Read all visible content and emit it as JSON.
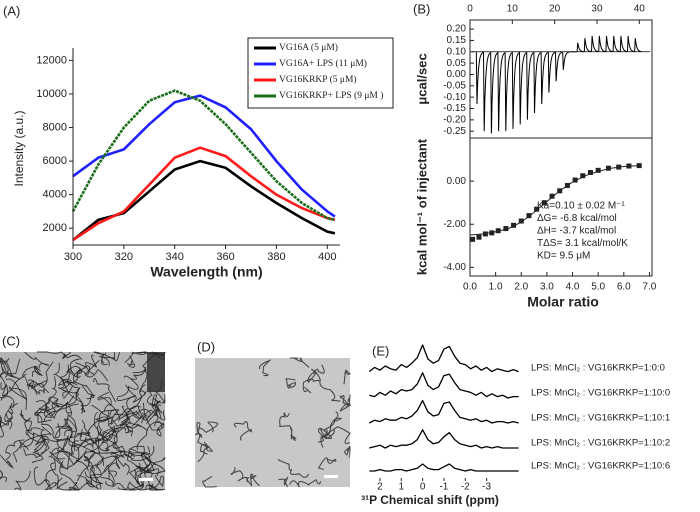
{
  "chart_data": [
    {
      "type": "line",
      "panel_label": "(A)",
      "xlabel": "Wavelength (nm)",
      "ylabel": "Intensity (a.u.)",
      "x": [
        300,
        310,
        320,
        330,
        340,
        350,
        360,
        370,
        380,
        390,
        400,
        403
      ],
      "xlim": [
        300,
        405
      ],
      "xticks": [
        300,
        320,
        340,
        360,
        380,
        400
      ],
      "ylim": [
        1000,
        12500
      ],
      "yticks": [
        2000,
        4000,
        6000,
        8000,
        10000,
        12000
      ],
      "legend": "upper right",
      "series": [
        {
          "name": "VG16A (5 μM)",
          "color": "#000000",
          "values": [
            1300,
            2500,
            2900,
            4200,
            5500,
            6000,
            5600,
            4500,
            3500,
            2600,
            1800,
            1700
          ]
        },
        {
          "name": "VG16A+ LPS (11 μM)",
          "color": "#1f1fff",
          "values": [
            5100,
            6200,
            6700,
            8200,
            9500,
            9900,
            9200,
            7900,
            6000,
            4300,
            3000,
            2700
          ]
        },
        {
          "name": "VG16KRKP (5 μM)",
          "color": "#ff1a1a",
          "values": [
            1300,
            2300,
            3000,
            4600,
            6200,
            6800,
            6300,
            5100,
            4000,
            3200,
            2600,
            2500
          ]
        },
        {
          "name": "VG16KRKP+ LPS (9 μM )",
          "color": "#1a6e1a",
          "values": [
            3000,
            5800,
            8000,
            9600,
            10200,
            9600,
            8200,
            6500,
            4800,
            3500,
            2600,
            2500
          ]
        }
      ]
    },
    {
      "type": "itc-raw",
      "panel_label": "(B)",
      "ylabel": "μcal/sec",
      "color": "#000000",
      "baseline": 0.1,
      "x": [
        1.5,
        3.2,
        4.9,
        6.6,
        8.3,
        10.0,
        11.7,
        13.4,
        15.1,
        16.8,
        18.5,
        20.2,
        21.9,
        23.6,
        25.3,
        27.0,
        28.7,
        30.4,
        32.1,
        33.8,
        35.5,
        37.2,
        38.9
      ],
      "values": [
        -0.13,
        -0.25,
        -0.26,
        -0.25,
        -0.25,
        -0.24,
        -0.22,
        -0.2,
        -0.17,
        -0.13,
        -0.08,
        -0.03,
        0.02,
        0.1,
        0.14,
        0.16,
        0.17,
        0.17,
        0.17,
        0.17,
        0.17,
        0.17,
        0.16
      ],
      "xlim": [
        0,
        43
      ],
      "xticks": [
        0,
        10,
        20,
        30,
        40
      ],
      "ylim": [
        -0.28,
        0.24
      ],
      "yticks": [
        {
          "value": 0.2,
          "label": "0.20"
        },
        {
          "value": 0.15,
          "label": "0.15"
        },
        {
          "value": 0.1,
          "label": "0.10"
        },
        {
          "value": 0.05,
          "label": "0.05"
        },
        {
          "value": 0,
          "label": "0.00"
        },
        {
          "value": -0.05,
          "label": "-0.05"
        },
        {
          "value": -0.1,
          "label": "-0.10"
        },
        {
          "value": -0.15,
          "label": "-0.15"
        },
        {
          "value": -0.2,
          "label": "-0.20"
        },
        {
          "value": -0.25,
          "label": "-0.25"
        }
      ]
    },
    {
      "type": "scatter",
      "xlabel": "Molar ratio",
      "ylabel": "kcal mol⁻¹ of injectant",
      "color": "#222222",
      "xlim": [
        0,
        7.1
      ],
      "xticks": [
        {
          "value": 0,
          "label": "0.0"
        },
        {
          "value": 1,
          "label": "1.0"
        },
        {
          "value": 2,
          "label": "2.0"
        },
        {
          "value": 3,
          "label": "3.0"
        },
        {
          "value": 4,
          "label": "4.0"
        },
        {
          "value": 5,
          "label": "5.0"
        },
        {
          "value": 6,
          "label": "6.0"
        },
        {
          "value": 7,
          "label": "7.0"
        }
      ],
      "ylim": [
        -4.4,
        2.0
      ],
      "yticks": [
        {
          "value": 0,
          "label": "0.00"
        },
        {
          "value": -2,
          "label": "-2.00"
        },
        {
          "value": -4,
          "label": "-4.00"
        }
      ],
      "annotations": [
        "Ka=0.10 ± 0.02 M⁻¹",
        "ΔG= -6.8 kcal/mol",
        "ΔH= -3.7 kcal/mol",
        "TΔS= 3.1 kcal/mol/K",
        "KD= 9.5 μM"
      ],
      "series": [
        {
          "marker": "square",
          "x": [
            0.1,
            0.35,
            0.6,
            0.85,
            1.1,
            1.4,
            1.7,
            2.0,
            2.3,
            2.6,
            2.9,
            3.2,
            3.5,
            3.8,
            4.1,
            4.4,
            4.7,
            5.0,
            5.4,
            5.8,
            6.2,
            6.6
          ],
          "values": [
            -2.7,
            -2.6,
            -2.45,
            -2.4,
            -2.3,
            -2.2,
            -2.05,
            -1.85,
            -1.6,
            -1.3,
            -1.0,
            -0.7,
            -0.45,
            -0.2,
            0.05,
            0.25,
            0.4,
            0.5,
            0.6,
            0.65,
            0.7,
            0.72
          ]
        },
        {
          "marker": "line",
          "x": [
            0,
            0.5,
            1,
            1.5,
            2,
            2.5,
            3,
            3.5,
            4,
            4.5,
            5,
            5.5,
            6,
            6.6
          ],
          "values": [
            -2.5,
            -2.45,
            -2.35,
            -2.2,
            -1.9,
            -1.45,
            -0.95,
            -0.45,
            -0.05,
            0.25,
            0.45,
            0.6,
            0.68,
            0.72
          ]
        }
      ]
    },
    {
      "type": "image",
      "panel_label": "(C)"
    },
    {
      "type": "image",
      "panel_label": "(D)"
    },
    {
      "type": "spectra",
      "panel_label": "(E)",
      "xlabel": "³¹P Chemical shift (ppm)",
      "color": "#000000",
      "x": [
        2.5,
        2.25,
        2,
        1.75,
        1.5,
        1.25,
        1,
        0.75,
        0.5,
        0.25,
        0,
        -0.25,
        -0.5,
        -0.75,
        -1,
        -1.25,
        -1.5,
        -1.75,
        -2,
        -2.25,
        -2.5,
        -2.75,
        -3,
        -3.25,
        -3.5,
        -3.75,
        -4,
        -4.25,
        -4.5
      ],
      "xlim": [
        2.7,
        -4.8
      ],
      "xticks": [
        2,
        1,
        0,
        -1,
        -2,
        -3
      ],
      "series": [
        {
          "name": "LPS: MnCl₂ : VG16KRKP=1:0:0",
          "values": [
            0.05,
            0.2,
            0.1,
            0.25,
            0.15,
            0.1,
            0.3,
            0.2,
            0.35,
            0.55,
            1.0,
            0.5,
            0.35,
            0.45,
            0.85,
            0.95,
            0.6,
            0.35,
            0.3,
            0.15,
            0.25,
            0.1,
            0.2,
            0.05,
            0.15,
            0.1,
            0.05,
            0.12,
            0.05
          ]
        },
        {
          "name": "LPS: MnCl₂ : VG16KRKP=1:10:0",
          "values": [
            0.1,
            0.05,
            0.2,
            0.1,
            0.25,
            0.15,
            0.3,
            0.25,
            0.3,
            0.5,
            0.9,
            0.45,
            0.3,
            0.4,
            0.8,
            0.85,
            0.55,
            0.3,
            0.25,
            0.2,
            0.1,
            0.2,
            0.05,
            0.15,
            0.05,
            0.1,
            0.0,
            0.05,
            0.05
          ]
        },
        {
          "name": "LPS: MnCl₂ : VG16KRKP=1:10:1",
          "values": [
            0.0,
            0.1,
            0.05,
            0.15,
            0.1,
            0.1,
            0.2,
            0.15,
            0.25,
            0.45,
            0.8,
            0.4,
            0.25,
            0.3,
            0.7,
            0.75,
            0.45,
            0.2,
            0.15,
            0.1,
            0.15,
            0.05,
            0.1,
            0.0,
            0.05,
            0.05,
            0.0,
            0.05,
            0.0
          ]
        },
        {
          "name": "LPS: MnCl₂ : VG16KRKP=1:10:2",
          "values": [
            0.0,
            0.05,
            0.1,
            0.0,
            0.1,
            0.05,
            0.1,
            0.1,
            0.15,
            0.3,
            0.65,
            0.3,
            0.15,
            0.2,
            0.4,
            0.55,
            0.3,
            0.15,
            0.1,
            0.05,
            0.1,
            0.0,
            0.05,
            0.0,
            0.05,
            0.0,
            0.0,
            0.0,
            0.0
          ]
        },
        {
          "name": "LPS: MnCl₂ : VG16KRKP=1:10:6",
          "values": [
            0.0,
            0.0,
            0.05,
            0.0,
            0.0,
            0.05,
            0.05,
            0.0,
            0.05,
            0.1,
            0.25,
            0.1,
            0.05,
            0.05,
            0.15,
            0.25,
            0.1,
            0.05,
            0.0,
            0.05,
            0.0,
            0.0,
            0.0,
            0.0,
            0.0,
            0.0,
            0.0,
            0.0,
            0.0
          ]
        }
      ]
    }
  ]
}
